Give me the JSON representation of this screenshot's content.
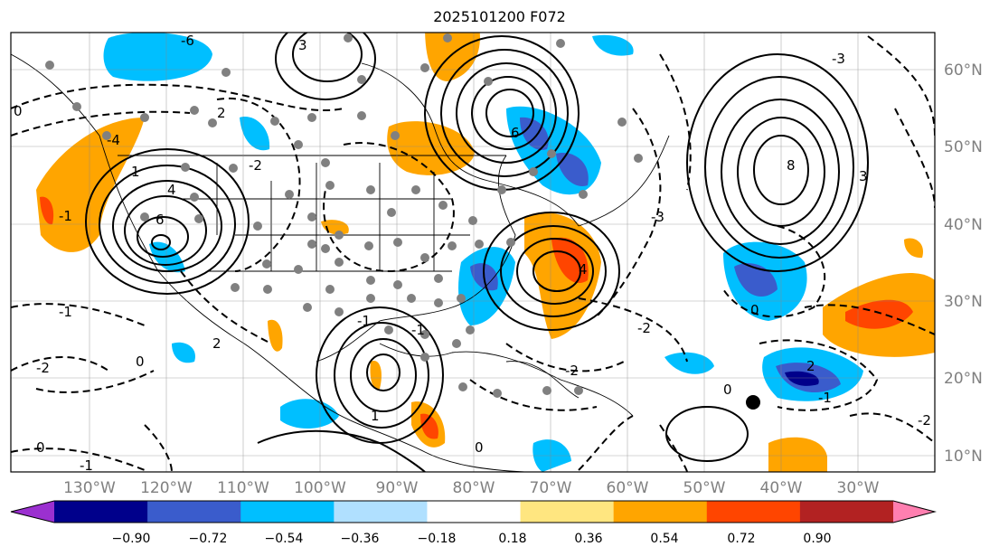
{
  "title": "2025101200 F072",
  "map": {
    "lon_labels": [
      "130°W",
      "120°W",
      "110°W",
      "100°W",
      "90°W",
      "80°W",
      "70°W",
      "60°W",
      "50°W",
      "40°W",
      "30°W"
    ],
    "lat_labels": [
      "60°N",
      "50°N",
      "40°N",
      "30°N",
      "20°N",
      "10°N"
    ],
    "grid_line_color": "#888888",
    "axis_label_color": "#808080"
  },
  "colorbar": {
    "ticks": [
      "−0.90",
      "−0.72",
      "−0.54",
      "−0.36",
      "−0.18",
      "0.18",
      "0.36",
      "0.54",
      "0.72",
      "0.90"
    ],
    "colors": [
      "#9b30d0",
      "#00008b",
      "#3a5ccc",
      "#00bfff",
      "#b0e0ff",
      "#ffffff",
      "#ffe680",
      "#ffa500",
      "#ff4500",
      "#b22222",
      "#ff7fb0"
    ]
  },
  "contour_labels": [
    "-6",
    "3",
    "2",
    "0",
    "-4",
    "-2",
    "-1",
    "6",
    "4",
    "1",
    "8",
    "6",
    "3",
    "4",
    "-2",
    "-3",
    "0",
    "-1",
    "-2",
    "-1",
    "2",
    "0",
    "-2",
    "0",
    "-1",
    "1",
    "0",
    "-3",
    "-1",
    "2",
    "0",
    "-1",
    "-2"
  ],
  "legend": {}
}
